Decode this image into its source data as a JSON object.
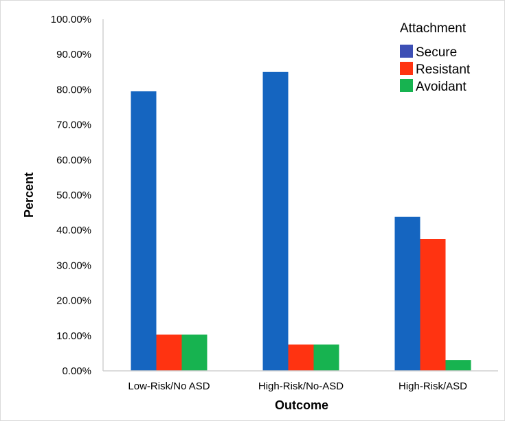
{
  "chart_data": {
    "type": "bar",
    "categories": [
      "Low-Risk/No ASD",
      "High-Risk/No-ASD",
      "High-Risk/ASD"
    ],
    "series": [
      {
        "name": "Secure",
        "values": [
          79.5,
          85.0,
          43.8
        ],
        "color": "#1565C0"
      },
      {
        "name": "Resistant",
        "values": [
          10.3,
          7.5,
          37.5
        ],
        "color": "#FF3311"
      },
      {
        "name": "Avoidant",
        "values": [
          10.3,
          7.5,
          3.1
        ],
        "color": "#17B350"
      }
    ],
    "title": "",
    "xlabel": "Outcome",
    "ylabel": "Percent",
    "ylim": [
      0,
      100
    ],
    "yticks": [
      "0.00%",
      "10.00%",
      "20.00%",
      "30.00%",
      "40.00%",
      "50.00%",
      "60.00%",
      "70.00%",
      "80.00%",
      "90.00%",
      "100.00%"
    ],
    "legend": {
      "title": "Attachment",
      "position": "top-right"
    },
    "legend_swatch_colors": [
      "#3D4FB5",
      "#FF3311",
      "#17B350"
    ],
    "grid": false
  }
}
